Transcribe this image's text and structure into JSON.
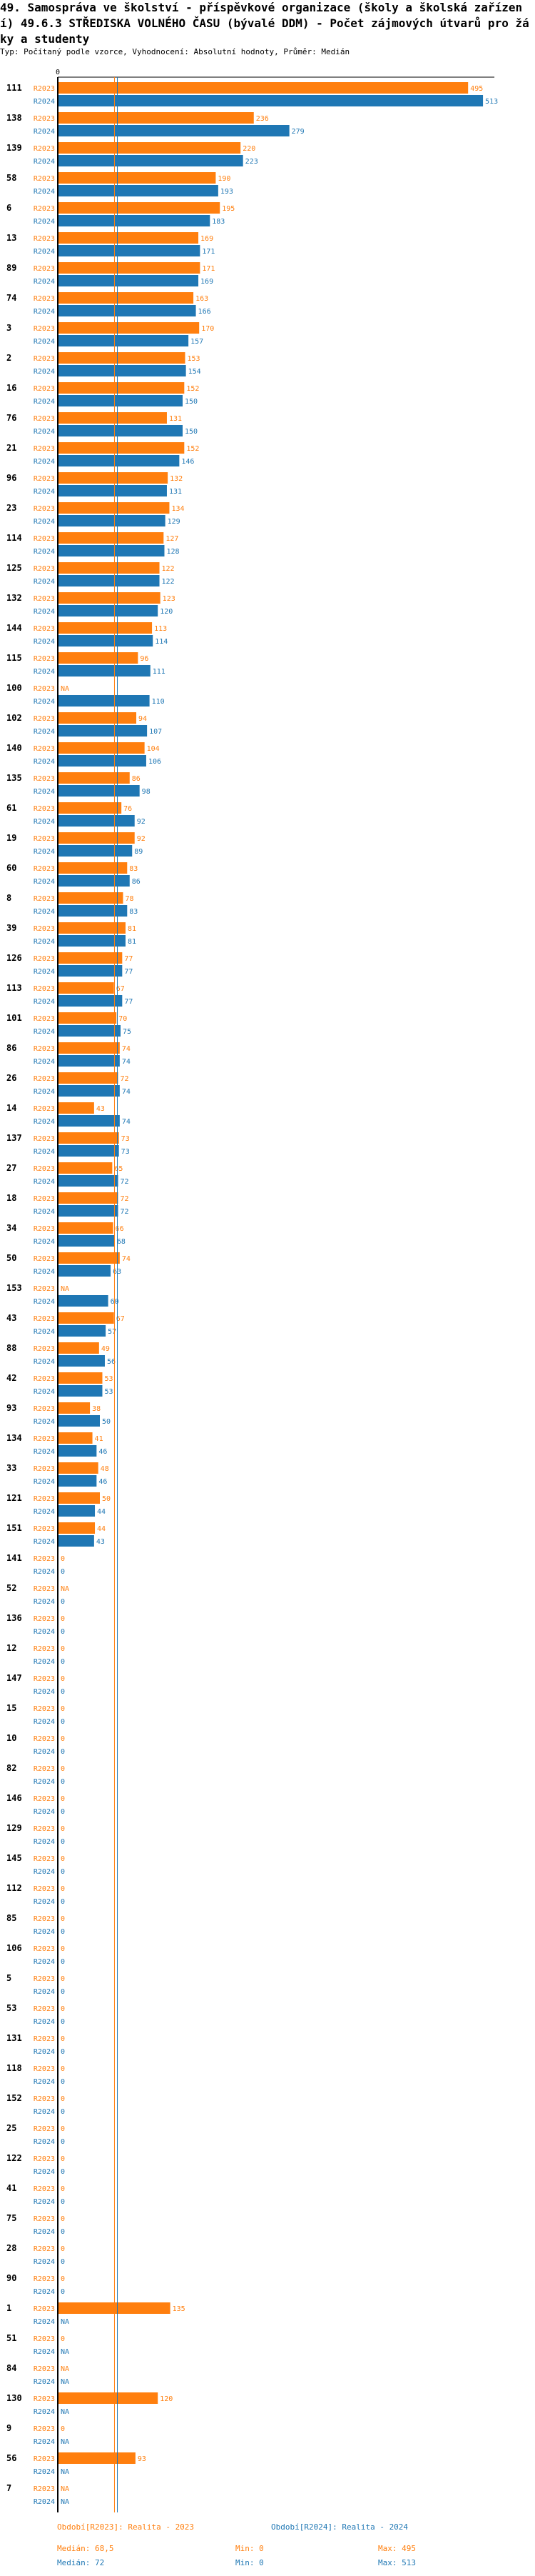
{
  "title": "49. Samospráva ve školství - příspěvkové organizace (školy a školská zařízení) 49.6.3 STŘEDISKA VOLNÉHO ČASU (bývalé DDM) - Počet zájmových útvarů pro žáky a studenty",
  "subtitle": "Typ: Počítaný podle vzorce, Vyhodnocení: Absolutní hodnoty, Průměr: Medián",
  "colors": {
    "r2023": "#ff7f0e",
    "r2024": "#1f77b4",
    "axis": "#000000"
  },
  "chart_data": {
    "type": "bar",
    "orientation": "horizontal",
    "x_tick_labels": [
      "0"
    ],
    "xlim": [
      0,
      513
    ],
    "na_label": "NA",
    "series": [
      {
        "name": "R2023",
        "median": 68.5
      },
      {
        "name": "R2024",
        "median": 72
      }
    ],
    "groups": [
      [
        "111",
        495,
        513
      ],
      [
        "138",
        236,
        279
      ],
      [
        "139",
        220,
        223
      ],
      [
        "58",
        190,
        193
      ],
      [
        "6",
        195,
        183
      ],
      [
        "13",
        169,
        171
      ],
      [
        "89",
        171,
        169
      ],
      [
        "74",
        163,
        166
      ],
      [
        "3",
        170,
        157
      ],
      [
        "2",
        153,
        154
      ],
      [
        "16",
        152,
        150
      ],
      [
        "76",
        131,
        150
      ],
      [
        "21",
        152,
        146
      ],
      [
        "96",
        132,
        131
      ],
      [
        "23",
        134,
        129
      ],
      [
        "114",
        127,
        128
      ],
      [
        "125",
        122,
        122
      ],
      [
        "132",
        123,
        120
      ],
      [
        "144",
        113,
        114
      ],
      [
        "115",
        96,
        111
      ],
      [
        "100",
        null,
        110
      ],
      [
        "102",
        94,
        107
      ],
      [
        "140",
        104,
        106
      ],
      [
        "135",
        86,
        98
      ],
      [
        "61",
        76,
        92
      ],
      [
        "19",
        92,
        89
      ],
      [
        "60",
        83,
        86
      ],
      [
        "8",
        78,
        83
      ],
      [
        "39",
        81,
        81
      ],
      [
        "126",
        77,
        77
      ],
      [
        "113",
        67,
        77
      ],
      [
        "101",
        70,
        75
      ],
      [
        "86",
        74,
        74
      ],
      [
        "26",
        72,
        74
      ],
      [
        "14",
        43,
        74
      ],
      [
        "137",
        73,
        73
      ],
      [
        "27",
        65,
        72
      ],
      [
        "18",
        72,
        72
      ],
      [
        "34",
        66,
        68
      ],
      [
        "50",
        74,
        63
      ],
      [
        "153",
        null,
        60
      ],
      [
        "43",
        67,
        57
      ],
      [
        "88",
        49,
        56
      ],
      [
        "42",
        53,
        53
      ],
      [
        "93",
        38,
        50
      ],
      [
        "134",
        41,
        46
      ],
      [
        "33",
        48,
        46
      ],
      [
        "121",
        50,
        44
      ],
      [
        "151",
        44,
        43
      ],
      [
        "141",
        0,
        0
      ],
      [
        "52",
        null,
        0
      ],
      [
        "136",
        0,
        0
      ],
      [
        "12",
        0,
        0
      ],
      [
        "147",
        0,
        0
      ],
      [
        "15",
        0,
        0
      ],
      [
        "10",
        0,
        0
      ],
      [
        "82",
        0,
        0
      ],
      [
        "146",
        0,
        0
      ],
      [
        "129",
        0,
        0
      ],
      [
        "145",
        0,
        0
      ],
      [
        "112",
        0,
        0
      ],
      [
        "85",
        0,
        0
      ],
      [
        "106",
        0,
        0
      ],
      [
        "5",
        0,
        0
      ],
      [
        "53",
        0,
        0
      ],
      [
        "131",
        0,
        0
      ],
      [
        "118",
        0,
        0
      ],
      [
        "152",
        0,
        0
      ],
      [
        "25",
        0,
        0
      ],
      [
        "122",
        0,
        0
      ],
      [
        "41",
        0,
        0
      ],
      [
        "75",
        0,
        0
      ],
      [
        "28",
        0,
        0
      ],
      [
        "90",
        0,
        0
      ],
      [
        "1",
        135,
        null
      ],
      [
        "51",
        0,
        null
      ],
      [
        "84",
        null,
        null
      ],
      [
        "130",
        120,
        null
      ],
      [
        "9",
        0,
        null
      ],
      [
        "56",
        93,
        null
      ],
      [
        "7",
        null,
        null
      ]
    ]
  },
  "legend": {
    "r2023": {
      "label": "Období[R2023]: Realita - 2023",
      "median": "Medián: 68,5",
      "min": "Min: 0",
      "max": "Max: 495"
    },
    "r2024": {
      "label": "Období[R2024]: Realita - 2024",
      "median": "Medián: 72",
      "min": "Min: 0",
      "max": "Max: 513"
    }
  }
}
